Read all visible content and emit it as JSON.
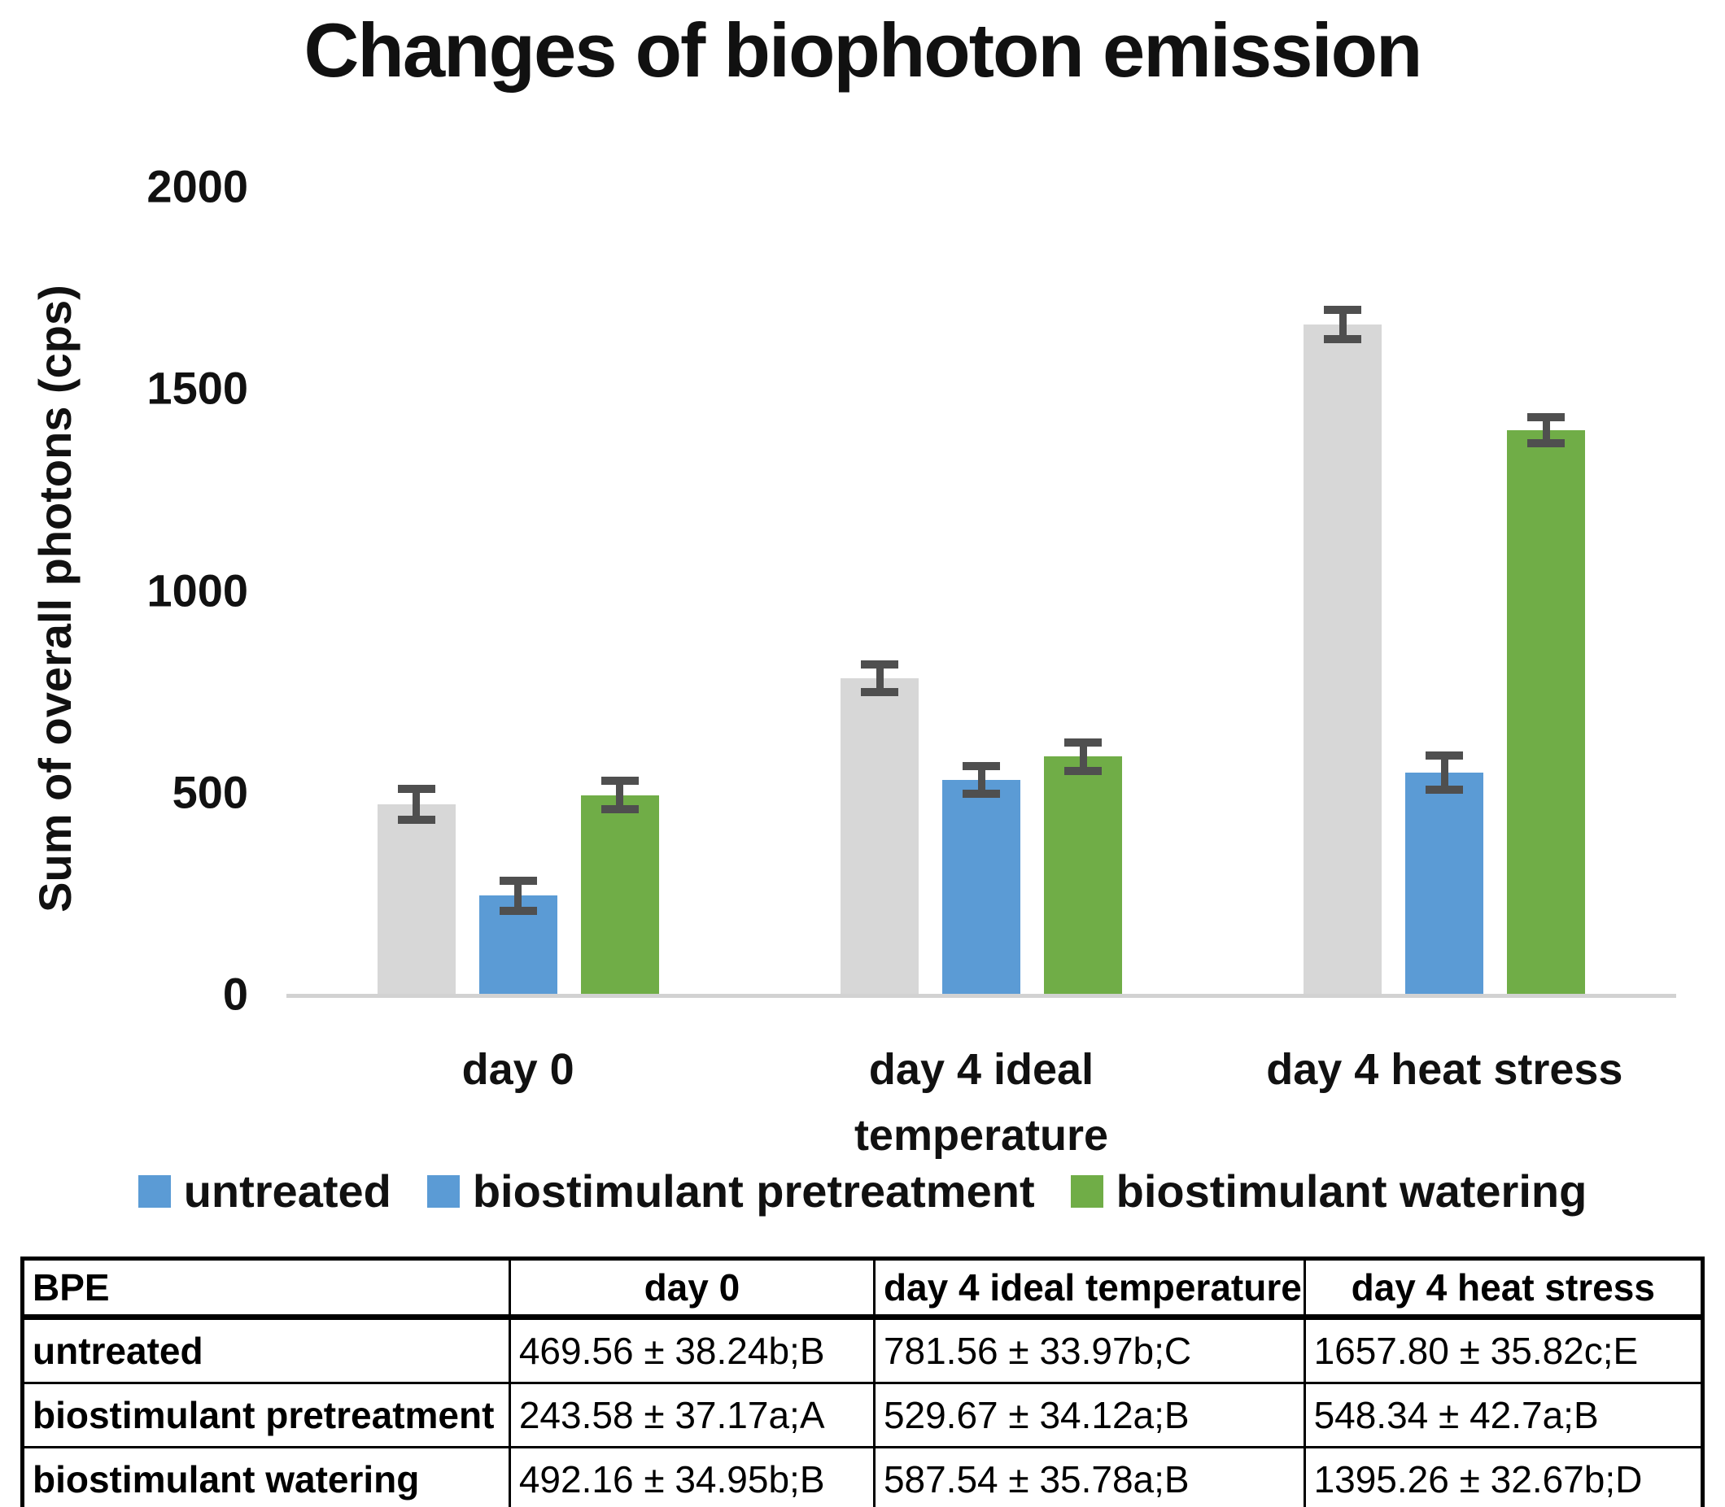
{
  "chart_data": {
    "type": "bar",
    "title": "Changes of biophoton emission",
    "xlabel": "",
    "ylabel": "Sum of overall photons (cps)",
    "ylim": [
      0,
      2000
    ],
    "yticks": [
      0,
      500,
      1000,
      1500,
      2000
    ],
    "grid": false,
    "legend_position": "bottom",
    "categories": [
      "day 0",
      "day 4 ideal temperature",
      "day 4 heat stress"
    ],
    "series": [
      {
        "name": "untreated",
        "bar_color": "#d7d7d7",
        "legend_color": "#5b9bd5",
        "values": [
          469.56,
          781.56,
          1657.8
        ],
        "errors": [
          38.24,
          33.97,
          35.82
        ]
      },
      {
        "name": "biostimulant pretreatment",
        "bar_color": "#5b9bd5",
        "legend_color": "#5b9bd5",
        "values": [
          243.58,
          529.67,
          548.34
        ],
        "errors": [
          37.17,
          34.12,
          42.7
        ]
      },
      {
        "name": "biostimulant watering",
        "bar_color": "#70ad47",
        "legend_color": "#70ad47",
        "values": [
          492.16,
          587.54,
          1395.26
        ],
        "errors": [
          34.95,
          35.78,
          32.67
        ]
      }
    ],
    "colors": {
      "error_bar": "#4f4f4f",
      "baseline": "#d2d2d2",
      "text": "#111111"
    }
  },
  "table": {
    "headers": [
      "BPE",
      "day 0",
      "day 4 ideal temperature",
      "day 4 heat stress"
    ],
    "rows": [
      [
        "untreated",
        "469.56 ± 38.24b;B",
        "781.56 ± 33.97b;C",
        "1657.80 ± 35.82c;E"
      ],
      [
        "biostimulant pretreatment",
        "243.58 ± 37.17a;A",
        "529.67 ± 34.12a;B",
        "548.34 ± 42.7a;B"
      ],
      [
        "biostimulant watering",
        "492.16 ± 34.95b;B",
        "587.54 ± 35.78a;B",
        "1395.26 ± 32.67b;D"
      ]
    ]
  }
}
